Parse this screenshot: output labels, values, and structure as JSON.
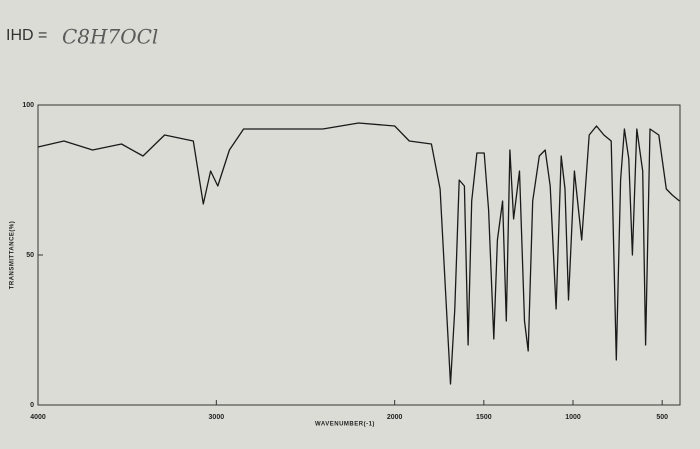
{
  "chart_data": {
    "type": "line",
    "annotation_label": "IHD =",
    "annotation": "C8H7OCl",
    "xlabel": "WAVENUMBER(-1)",
    "ylabel": "TRANSMITTANCE(%)",
    "x": [
      4000,
      3855,
      3694,
      3532,
      3411,
      3290,
      3129,
      3073,
      3032,
      2992,
      2927,
      2847,
      2565,
      2403,
      2202,
      2000,
      1918,
      1794,
      1745,
      1712,
      1687,
      1663,
      1638,
      1609,
      1588,
      1568,
      1539,
      1498,
      1473,
      1444,
      1424,
      1395,
      1374,
      1354,
      1333,
      1300,
      1272,
      1251,
      1226,
      1189,
      1156,
      1128,
      1095,
      1066,
      1045,
      1025,
      992,
      951,
      909,
      868,
      827,
      786,
      757,
      733,
      712,
      687,
      667,
      642,
      609,
      593,
      568,
      519,
      477,
      444,
      403
    ],
    "series": [
      {
        "name": "spectrum",
        "color": "#1a1a1a",
        "values": [
          86,
          88,
          85,
          87,
          83,
          90,
          88,
          67,
          78,
          73,
          85,
          92,
          92,
          92,
          94,
          93,
          88,
          87,
          72,
          35,
          7,
          32,
          75,
          73,
          20,
          68,
          84,
          84,
          65,
          22,
          55,
          68,
          28,
          85,
          62,
          78,
          28,
          18,
          68,
          83,
          85,
          73,
          32,
          83,
          72,
          35,
          78,
          55,
          90,
          93,
          90,
          88,
          15,
          75,
          92,
          82,
          50,
          92,
          78,
          20,
          92,
          90,
          72,
          70,
          68
        ]
      }
    ],
    "xlim": [
      4000,
      400
    ],
    "xticks": [
      4000,
      3000,
      2000,
      1500,
      1000,
      500
    ],
    "ylim": [
      0,
      100
    ],
    "yticks": [
      0,
      50,
      100
    ]
  }
}
